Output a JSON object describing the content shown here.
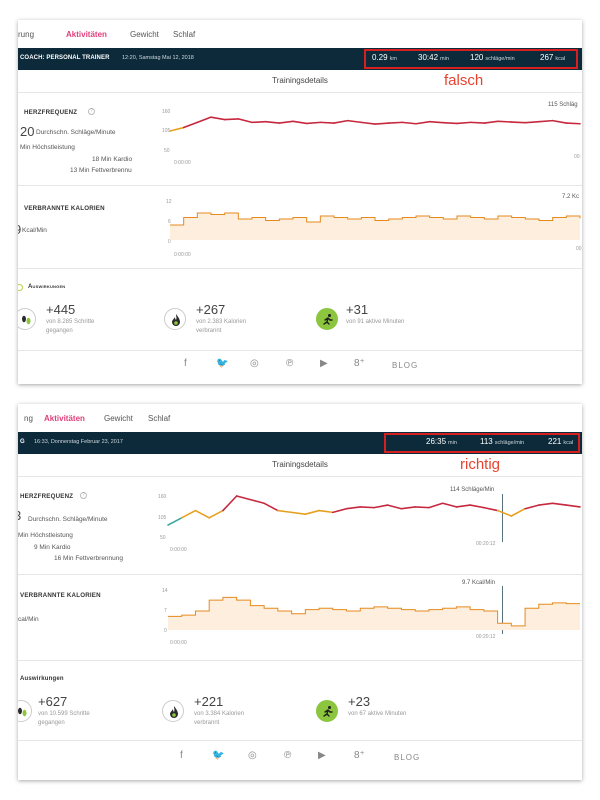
{
  "colors": {
    "accent": "#e0407a",
    "bar": "#0c2a3a",
    "annotation": "#e8432f",
    "heart_line": "#c6283e",
    "calorie_line": "#e68a1f"
  },
  "panels": [
    {
      "tabs": [
        "rung",
        "Aktivitäten",
        "Gewicht",
        "Schlaf"
      ],
      "coach": "COACH: PERSONAL TRAINER",
      "date": "12:20, Samstag Mai 12, 2018",
      "stats": [
        {
          "value": "0.29",
          "unit": "km"
        },
        {
          "value": "30:42",
          "unit": "min"
        },
        {
          "value": "120",
          "unit": "schläge/min"
        },
        {
          "value": "267",
          "unit": "kcal"
        }
      ],
      "annotation": "falsch",
      "details_title": "Trainingsdetails",
      "heart": {
        "label": "HERZFREQUENZ",
        "big": "20",
        "big_sub": "Durchschn. Schläge/Minute",
        "peak": "Min Höchstleistung",
        "cardio": "18 Min Kardio",
        "fat": "13 Min Fettverbrennu",
        "y_ticks": [
          "160",
          "105",
          "50"
        ],
        "x_start": "0:00:00",
        "x_end": "00:",
        "tooltip": "115 Schläg"
      },
      "calories": {
        "label": "VERBRANNTE KALORIEN",
        "big": "9",
        "big_sub": "Kcal/Min",
        "y_ticks": [
          "12",
          "6",
          "0"
        ],
        "x_start": "0:00:00",
        "x_end": "00",
        "tooltip": "7.2 Kc"
      },
      "impact_label": "Auswirkungen",
      "impacts": [
        {
          "value": "+445",
          "sub1": "von 8.285 Schritte",
          "sub2": "gegangen",
          "icon": "footsteps-icon"
        },
        {
          "value": "+267",
          "sub1": "von 2.383 Kalorien",
          "sub2": "verbrannt",
          "icon": "flame-icon"
        },
        {
          "value": "+31",
          "sub1": "von 91 aktive Minuten",
          "sub2": "",
          "icon": "runner-icon"
        }
      ],
      "social": [
        "f",
        "🐦",
        "◎",
        "℗",
        "▶",
        "8⁺",
        "BLOG"
      ]
    },
    {
      "tabs": [
        "ng",
        "Aktivitäten",
        "Gewicht",
        "Schlaf"
      ],
      "coach": "G",
      "date": "16:33, Donnerstag Februar 23, 2017",
      "stats": [
        {
          "value": "26:35",
          "unit": "min"
        },
        {
          "value": "113",
          "unit": "schläge/min"
        },
        {
          "value": "221",
          "unit": "kcal"
        }
      ],
      "annotation": "richtig",
      "details_title": "Trainingsdetails",
      "heart": {
        "label": "HERZFREQUENZ",
        "big": "3",
        "big_sub": "Durchschn. Schläge/Minute",
        "peak": "Min Höchstleistung",
        "cardio": "9 Min Kardio",
        "fat": "16 Min Fettverbrennung",
        "y_ticks": [
          "160",
          "105",
          "50"
        ],
        "x_start": "0:00:00",
        "x_end": "00:20:12",
        "tooltip": "114 Schläge/Min"
      },
      "calories": {
        "label": "VERBRANNTE KALORIEN",
        "big": "",
        "big_sub": "cal/Min",
        "y_ticks": [
          "14",
          "7",
          "0"
        ],
        "x_start": "0:00:00",
        "x_end": "00:20:12",
        "tooltip": "9.7 Kcal/Min"
      },
      "impact_label": "Auswirkungen",
      "impacts": [
        {
          "value": "+627",
          "sub1": "von 10.599 Schritte",
          "sub2": "gegangen",
          "icon": "footsteps-icon"
        },
        {
          "value": "+221",
          "sub1": "von 3.384 Kalorien",
          "sub2": "verbrannt",
          "icon": "flame-icon"
        },
        {
          "value": "+23",
          "sub1": "von 67 aktive Minuten",
          "sub2": "",
          "icon": "runner-icon"
        }
      ],
      "social": [
        "f",
        "🐦",
        "◎",
        "℗",
        "▶",
        "8⁺",
        "BLOG"
      ]
    }
  ],
  "chart_data": [
    {
      "type": "line",
      "name": "panel0-heart",
      "ylim": [
        50,
        160
      ],
      "x": [
        0,
        1,
        2,
        3,
        4,
        5,
        6,
        7,
        8,
        9,
        10,
        11,
        12,
        13,
        14,
        15,
        16,
        17,
        18,
        19,
        20,
        21,
        22,
        23,
        24,
        25,
        26,
        27,
        28,
        29,
        30
      ],
      "values": [
        105,
        115,
        130,
        145,
        138,
        140,
        130,
        132,
        128,
        133,
        127,
        130,
        128,
        135,
        130,
        125,
        128,
        130,
        126,
        132,
        129,
        127,
        130,
        128,
        133,
        131,
        129,
        132,
        135,
        128,
        126
      ]
    },
    {
      "type": "area",
      "name": "panel0-calories",
      "ylim": [
        0,
        12
      ],
      "x": [
        0,
        1,
        2,
        3,
        4,
        5,
        6,
        7,
        8,
        9,
        10,
        11,
        12,
        13,
        14,
        15,
        16,
        17,
        18,
        19,
        20,
        21,
        22,
        23,
        24,
        25,
        26,
        27,
        28,
        29,
        30
      ],
      "values": [
        5,
        7.5,
        9,
        8.5,
        9,
        7,
        7.5,
        6.5,
        7,
        7.5,
        6,
        8,
        7.5,
        7,
        7.5,
        6.5,
        7,
        7.5,
        8,
        7.5,
        7,
        8,
        7.5,
        7,
        8,
        7.5,
        7,
        6.5,
        7.5,
        8,
        7.2
      ]
    },
    {
      "type": "line",
      "name": "panel1-heart",
      "ylim": [
        50,
        160
      ],
      "x": [
        0,
        1,
        2,
        3,
        4,
        5,
        6,
        7,
        8,
        9,
        10,
        11,
        12,
        13,
        14,
        15,
        16,
        17,
        18,
        19,
        20,
        21,
        22,
        23,
        24,
        25,
        26,
        27,
        28,
        29,
        30
      ],
      "values": [
        80,
        100,
        120,
        100,
        120,
        160,
        150,
        140,
        120,
        115,
        110,
        120,
        115,
        125,
        130,
        128,
        135,
        125,
        130,
        128,
        140,
        130,
        135,
        128,
        120,
        105,
        125,
        135,
        140,
        135,
        130
      ]
    },
    {
      "type": "area",
      "name": "panel1-calories",
      "ylim": [
        0,
        14
      ],
      "x": [
        0,
        1,
        2,
        3,
        4,
        5,
        6,
        7,
        8,
        9,
        10,
        11,
        12,
        13,
        14,
        15,
        16,
        17,
        18,
        19,
        20,
        21,
        22,
        23,
        24,
        25,
        26,
        27,
        28,
        29,
        30
      ],
      "values": [
        5,
        5.5,
        7,
        11,
        12,
        11,
        9,
        8,
        7,
        6,
        7.5,
        8,
        7.5,
        7,
        8,
        8.5,
        8,
        7.5,
        7,
        7.5,
        8,
        8.5,
        7.5,
        7,
        2.5,
        1.5,
        8,
        9.5,
        10,
        9.7,
        9.7
      ]
    }
  ]
}
